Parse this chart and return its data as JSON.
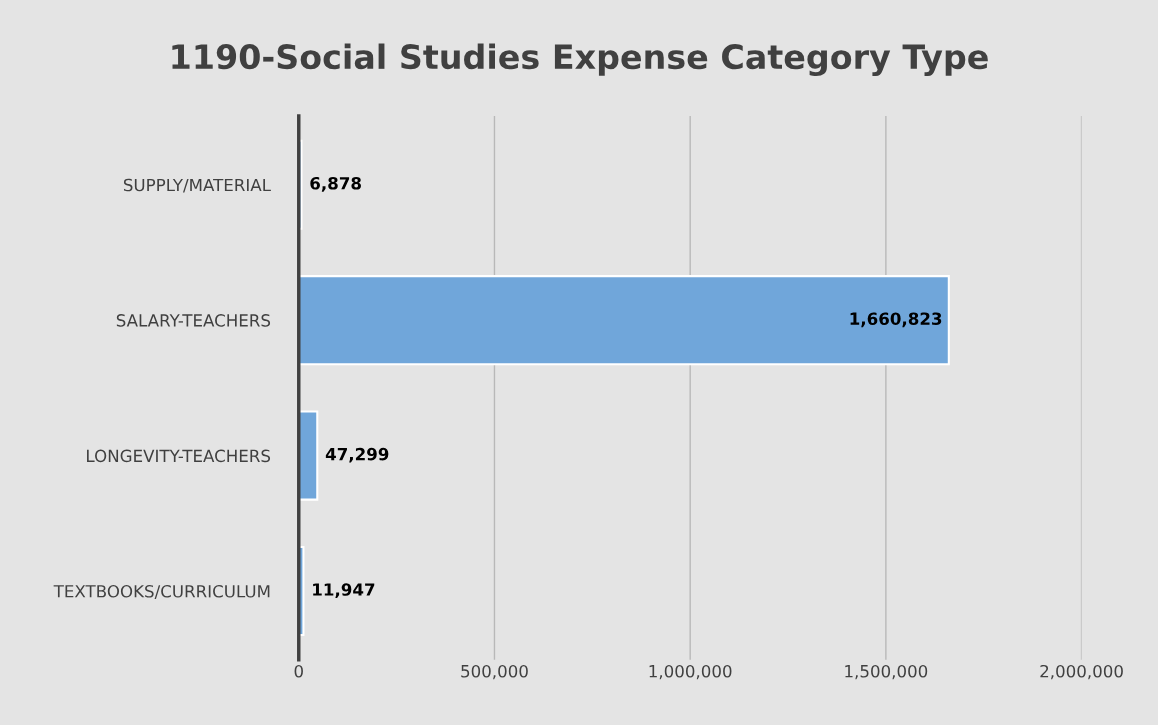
{
  "chart_data": {
    "type": "bar",
    "orientation": "horizontal",
    "title": "1190-Social Studies Expense Category Type",
    "categories": [
      "SUPPLY/MATERIAL",
      "SALARY-TEACHERS",
      "LONGEVITY-TEACHERS",
      "TEXTBOOKS/CURRICULUM"
    ],
    "values": [
      6878,
      1660823,
      47299,
      11947
    ],
    "value_labels": [
      "6,878",
      "1,660,823",
      "47,299",
      "11,947"
    ],
    "color": "#70a6da",
    "xlim": [
      0,
      2000000
    ],
    "xticks": [
      0,
      {
        "value": 500000,
        "label": "500,000"
      },
      {
        "value": 1000000,
        "label": "1,000,000"
      },
      {
        "value": 1500000,
        "label": "1,500,000"
      },
      {
        "value": 2000000,
        "label": "2,000,000"
      }
    ],
    "grid": "x"
  }
}
